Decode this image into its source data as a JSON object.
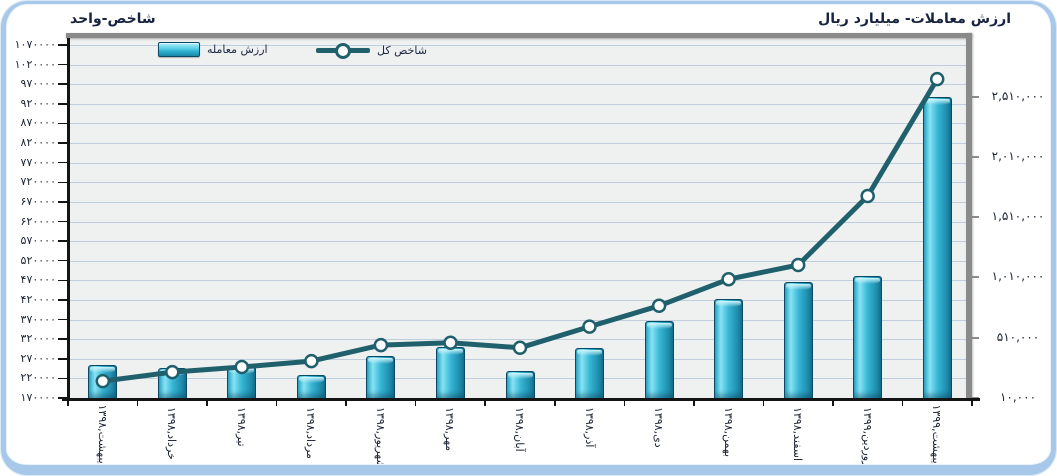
{
  "chart_data": {
    "type": "bar+line combo",
    "categories": [
      "اردیبهشت,۱۳۹۸",
      "خرداد,۱۳۹۸",
      "تیر,۱۳۹۸",
      "مرداد,۱۳۹۸",
      "شهریور,۱۳۹۸",
      "مهر,۱۳۹۸",
      "آبان,۱۳۹۸",
      "آذر,۱۳۹۸",
      "دی,۱۳۹۸",
      "بهمن,۱۳۹۸",
      "اسفند,۱۳۹۸",
      "فروردین,۱۳۹۹",
      "اردیبهشت,۱۳۹۹"
    ],
    "series": [
      {
        "name": "ارزش معامله",
        "type": "bar",
        "axis": "right",
        "values": [
          285000,
          260000,
          275000,
          200000,
          360000,
          430000,
          235000,
          425000,
          650000,
          830000,
          970000,
          1020000,
          2505000
        ]
      },
      {
        "name": "شاخص کل",
        "type": "line",
        "axis": "left",
        "values": [
          213000,
          236000,
          249000,
          264000,
          305000,
          311000,
          298000,
          352000,
          405000,
          473000,
          509000,
          685000,
          983000
        ]
      }
    ],
    "axis_left": {
      "title": "شاخص-واحد",
      "min": 170000,
      "max": 1070000,
      "tick_step": 50000,
      "tick_labels": [
        "۱۰۷۰۰۰۰",
        "۱۰۲۰۰۰۰",
        "۹۷۰۰۰۰",
        "۹۲۰۰۰۰",
        "۸۷۰۰۰۰",
        "۸۲۰۰۰۰",
        "۷۷۰۰۰۰",
        "۷۲۰۰۰۰",
        "۶۷۰۰۰۰",
        "۶۲۰۰۰۰",
        "۵۷۰۰۰۰",
        "۵۲۰۰۰۰",
        "۴۷۰۰۰۰",
        "۴۲۰۰۰۰",
        "۳۷۰۰۰۰",
        "۳۲۰۰۰۰",
        "۲۷۰۰۰۰",
        "۲۲۰۰۰۰",
        "۱۷۰۰۰۰"
      ]
    },
    "axis_right": {
      "title": "ارزش معاملات- میلیارد ریال",
      "min": 10000,
      "max": 2510000,
      "tick_step": 500000,
      "tick_labels": [
        "۲,۵۱۰,۰۰۰",
        "۲,۰۱۰,۰۰۰",
        "۱,۵۱۰,۰۰۰",
        "۱,۰۱۰,۰۰۰",
        "۵۱۰,۰۰۰",
        "۱۰,۰۰۰"
      ]
    },
    "legend_position": "top",
    "grid": "horizontal",
    "colors": {
      "bar": "#35b4d4",
      "bar_light": "#86e2f2",
      "bar_dark": "#187e9e",
      "bar_border": "#0c4a63",
      "line": "#20606d",
      "marker_fill": "#ffffff",
      "grid": "#bfcddc",
      "plot_bg": "#eff1f1",
      "plot_border": "#8a8a8a",
      "axis": "#141414",
      "frame": "#a7c8e8",
      "text": "#1c2433"
    }
  }
}
